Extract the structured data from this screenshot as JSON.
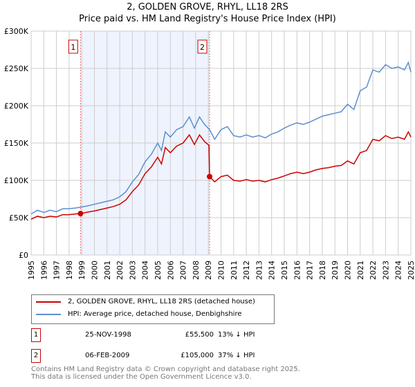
{
  "header": {
    "title": "2, GOLDEN GROVE, RHYL, LL18 2RS",
    "subtitle": "Price paid vs. HM Land Registry's House Price Index (HPI)"
  },
  "chart_data": {
    "type": "line",
    "title": "2, GOLDEN GROVE, RHYL, LL18 2RS",
    "subtitle": "Price paid vs. HM Land Registry's House Price Index (HPI)",
    "xlim": [
      1995,
      2025
    ],
    "ylim": [
      0,
      300000
    ],
    "x_ticks": [
      "1995",
      "1996",
      "1997",
      "1998",
      "1999",
      "2000",
      "2001",
      "2002",
      "2003",
      "2004",
      "2005",
      "2006",
      "2007",
      "2008",
      "2009",
      "2010",
      "2011",
      "2012",
      "2013",
      "2014",
      "2015",
      "2016",
      "2017",
      "2018",
      "2019",
      "2020",
      "2021",
      "2022",
      "2023",
      "2024",
      "2025"
    ],
    "y_ticks": [
      {
        "value": 0,
        "label": "£0"
      },
      {
        "value": 50000,
        "label": "£50K"
      },
      {
        "value": 100000,
        "label": "£100K"
      },
      {
        "value": 150000,
        "label": "£150K"
      },
      {
        "value": 200000,
        "label": "£200K"
      },
      {
        "value": 250000,
        "label": "£250K"
      },
      {
        "value": 300000,
        "label": "£300K"
      }
    ],
    "grid": true,
    "colors": {
      "property": "#cc0000",
      "hpi": "#5b8fd0",
      "shade": "#eef3fd",
      "marker": "#cc0000"
    },
    "series": [
      {
        "name": "HPI: Average price, detached house, Denbighshire",
        "x": [
          1995,
          1995.5,
          1996,
          1996.5,
          1997,
          1997.5,
          1998,
          1998.5,
          1998.9,
          1999.5,
          2000,
          2000.5,
          2001,
          2001.5,
          2002,
          2002.5,
          2003,
          2003.5,
          2004,
          2004.5,
          2005,
          2005.3,
          2005.6,
          2006,
          2006.5,
          2007,
          2007.5,
          2007.9,
          2008.3,
          2008.7,
          2009.1,
          2009.5,
          2010,
          2010.5,
          2011,
          2011.5,
          2012,
          2012.5,
          2013,
          2013.5,
          2014,
          2014.5,
          2015,
          2015.5,
          2016,
          2016.5,
          2017,
          2017.5,
          2018,
          2018.5,
          2019,
          2019.5,
          2020,
          2020.5,
          2021,
          2021.5,
          2022,
          2022.5,
          2023,
          2023.5,
          2024,
          2024.5,
          2024.8,
          2025
        ],
        "values": [
          55000,
          60000,
          57000,
          60000,
          58000,
          62000,
          62000,
          63000,
          64000,
          66000,
          68000,
          70000,
          72000,
          74000,
          78000,
          85000,
          98000,
          108000,
          125000,
          135000,
          150000,
          140000,
          165000,
          158000,
          168000,
          172000,
          185000,
          170000,
          185000,
          175000,
          168000,
          155000,
          168000,
          172000,
          160000,
          158000,
          161000,
          158000,
          160000,
          157000,
          162000,
          165000,
          170000,
          174000,
          177000,
          175000,
          178000,
          182000,
          186000,
          188000,
          190000,
          192000,
          202000,
          195000,
          220000,
          225000,
          248000,
          245000,
          255000,
          250000,
          252000,
          248000,
          258000,
          245000
        ]
      },
      {
        "name": "2, GOLDEN GROVE, RHYL, LL18 2RS (detached house)",
        "x": [
          1995,
          1995.5,
          1996,
          1996.5,
          1997,
          1997.5,
          1998,
          1998.5,
          1998.9,
          1999.5,
          2000,
          2000.5,
          2001,
          2001.5,
          2002,
          2002.5,
          2003,
          2003.5,
          2004,
          2004.5,
          2005,
          2005.3,
          2005.6,
          2006,
          2006.5,
          2007,
          2007.5,
          2007.9,
          2008.3,
          2008.7,
          2009.05,
          2009.1,
          2009.5,
          2010,
          2010.5,
          2011,
          2011.5,
          2012,
          2012.5,
          2013,
          2013.5,
          2014,
          2014.5,
          2015,
          2015.5,
          2016,
          2016.5,
          2017,
          2017.5,
          2018,
          2018.5,
          2019,
          2019.5,
          2020,
          2020.5,
          2021,
          2021.5,
          2022,
          2022.5,
          2023,
          2023.5,
          2024,
          2024.5,
          2024.8,
          2025
        ],
        "values": [
          48000,
          52000,
          50000,
          52000,
          51000,
          54000,
          54000,
          55000,
          55500,
          57500,
          59000,
          61000,
          63000,
          65000,
          68000,
          74000,
          85000,
          94000,
          109000,
          118000,
          131000,
          122000,
          144000,
          137000,
          146000,
          150000,
          161000,
          148000,
          161000,
          152000,
          147000,
          105000,
          98000,
          105000,
          107000,
          100000,
          99000,
          101000,
          99000,
          100000,
          98000,
          101000,
          103000,
          106000,
          109000,
          111000,
          109000,
          111000,
          114000,
          116000,
          117000,
          119000,
          120000,
          126000,
          122000,
          137000,
          140000,
          155000,
          153000,
          160000,
          156000,
          158000,
          155000,
          165000,
          158000
        ]
      }
    ],
    "sales": [
      {
        "id": "1",
        "x": 1998.9,
        "value": 55500,
        "date": "25-NOV-1998",
        "price": "£55,500",
        "hpi_diff": "13% ↓ HPI"
      },
      {
        "id": "2",
        "x": 2009.1,
        "value": 105000,
        "date": "06-FEB-2009",
        "price": "£105,000",
        "hpi_diff": "37% ↓ HPI"
      }
    ]
  },
  "legend": {
    "property": "2, GOLDEN GROVE, RHYL, LL18 2RS (detached house)",
    "hpi": "HPI: Average price, detached house, Denbighshire"
  },
  "footer": {
    "line1": "Contains HM Land Registry data © Crown copyright and database right 2025.",
    "line2": "This data is licensed under the Open Government Licence v3.0."
  }
}
